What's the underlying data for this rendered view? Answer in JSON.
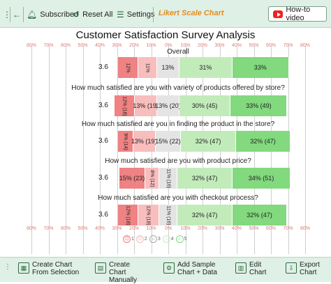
{
  "toolbar": {
    "menu_icon": "vertical-ellipsis",
    "back_icon": "arrow-left",
    "subscribed_label": "Subscribed",
    "reset_label": "Reset All",
    "settings_label": "Settings",
    "brand_label": "Likert Scale Chart",
    "howto_label": "How-to video"
  },
  "chart_data": {
    "type": "bar",
    "title": "Customer Satisfaction Survey Analysis",
    "axis_labels": [
      "80%",
      "70%",
      "60%",
      "50%",
      "40%",
      "30%",
      "20%",
      "10%",
      "0%",
      "10%",
      "20%",
      "30%",
      "40%",
      "50%",
      "60%",
      "70%",
      "80%"
    ],
    "scale_levels": [
      1,
      2,
      3,
      4,
      5
    ],
    "colors": [
      "#ef8282",
      "#f8bdbd",
      "#e4e4e4",
      "#c2ebba",
      "#82d97e"
    ],
    "questions": [
      {
        "label": "Overall",
        "average": "3.6",
        "percents": [
          12,
          11,
          13,
          31,
          33
        ],
        "labels": [
          "12%",
          "11%",
          "13%",
          "31%",
          "33%"
        ]
      },
      {
        "label": "How much satisfied are you with variety of products offered by store?",
        "average": "3.6",
        "percents": [
          12,
          13,
          13,
          30,
          33
        ],
        "labels": [
          "12% (18)",
          "13% (19)",
          "13% (20)",
          "30% (45)",
          "33% (49)"
        ]
      },
      {
        "label": "How much satisfied are you in finding the product in the store?",
        "average": "3.6",
        "percents": [
          9,
          13,
          15,
          32,
          32
        ],
        "labels": [
          "9% (14)",
          "13% (19)",
          "15% (22)",
          "32% (47)",
          "32% (47)"
        ]
      },
      {
        "label": "How much satisfied are you with product price?",
        "average": "3.6",
        "percents": [
          15,
          8,
          11,
          32,
          34
        ],
        "labels": [
          "15% (23)",
          "8% (12)",
          "11% (16)",
          "32% (47)",
          "34% (51)"
        ]
      },
      {
        "label": "How much satisfied are you with checkout process?",
        "average": "3.6",
        "percents": [
          12,
          12,
          11,
          32,
          32
        ],
        "labels": [
          "12% (18)",
          "12% (18)",
          "11% (16)",
          "32% (47)",
          "32% (47)"
        ]
      }
    ]
  },
  "bottombar": {
    "create_selection": "Create Chart From Selection",
    "create_manual": "Create Chart Manually",
    "add_sample": "Add Sample Chart + Data",
    "edit_chart": "Edit Chart",
    "export_chart": "Export Chart"
  }
}
